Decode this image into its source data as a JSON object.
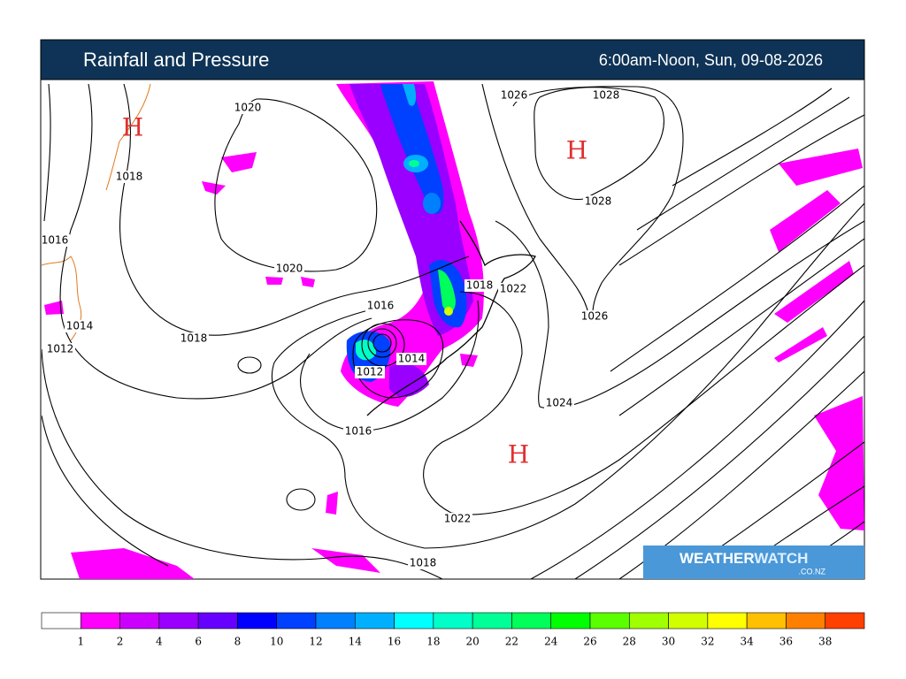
{
  "header": {
    "title": "Rainfall and Pressure",
    "period": "6:00am-Noon, Sun, 09-08-2026"
  },
  "map": {
    "isobar_labels": [
      "1020",
      "1018",
      "1016",
      "1020",
      "1016",
      "1018",
      "1014",
      "1012",
      "1014",
      "1012",
      "1016",
      "1026",
      "1028",
      "1028",
      "1018",
      "1022",
      "1026",
      "1024",
      "1022",
      "1018"
    ],
    "highs": [
      "H",
      "H",
      "H"
    ]
  },
  "logo": {
    "brand_left": "WEATHER",
    "brand_right": "WATCH",
    "domain": ".CO.NZ"
  },
  "legend": {
    "ticks": [
      "1",
      "2",
      "4",
      "6",
      "8",
      "10",
      "12",
      "14",
      "16",
      "18",
      "20",
      "22",
      "24",
      "26",
      "28",
      "30",
      "32",
      "34",
      "36",
      "38"
    ],
    "colors": [
      "#ffffff",
      "#ff00ff",
      "#cc00ff",
      "#9900ff",
      "#6600ff",
      "#0000ff",
      "#0040ff",
      "#0080ff",
      "#00b0ff",
      "#00ffff",
      "#00ffc8",
      "#00ff96",
      "#00ff5a",
      "#00ff00",
      "#5aff00",
      "#a0ff00",
      "#d2ff00",
      "#ffff00",
      "#ffc000",
      "#ff8000",
      "#ff4000"
    ]
  }
}
